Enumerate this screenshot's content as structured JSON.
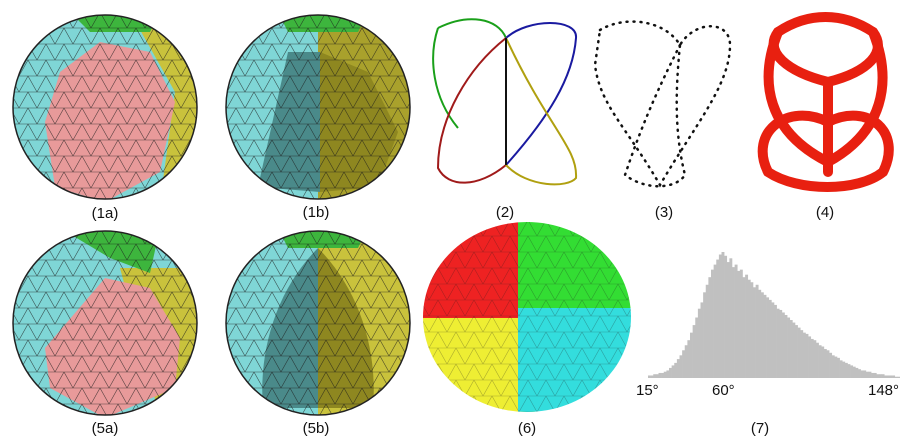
{
  "figure": {
    "captions": {
      "p1a": "(1a)",
      "p1b": "(1b)",
      "p2": "(2)",
      "p3": "(3)",
      "p4": "(4)",
      "p5a": "(5a)",
      "p5b": "(5b)",
      "p6": "(6)",
      "p7": "(7)"
    },
    "colors": {
      "cyan_region": "#7fd6d6",
      "pink_region": "#e89a9a",
      "yellow_region": "#c9c23c",
      "green_region": "#3db53d",
      "mesh_lines": "#1a1a1a",
      "curve_green": "#1aa01a",
      "curve_blue": "#1a1aa0",
      "curve_red": "#a01a1a",
      "curve_yellow": "#b0a010",
      "tube_red": "#e82010",
      "disc_red": "#ee2222",
      "disc_green": "#33dd33",
      "disc_yellow": "#eeee33",
      "disc_cyan": "#33dddd",
      "histogram": "#c0c0c0"
    }
  },
  "chart_data": {
    "type": "bar",
    "title": "",
    "xlabel": "",
    "ylabel": "",
    "tick_labels": [
      "15°",
      "60°",
      "148°"
    ],
    "x_range": [
      15,
      148
    ],
    "tick_values": [
      15,
      60,
      148
    ],
    "values": [
      2,
      2,
      3,
      3,
      4,
      4,
      5,
      6,
      8,
      10,
      12,
      15,
      18,
      22,
      26,
      30,
      36,
      42,
      48,
      55,
      60,
      68,
      74,
      80,
      86,
      90,
      94,
      98,
      100,
      97,
      92,
      95,
      88,
      90,
      85,
      86,
      80,
      82,
      78,
      76,
      72,
      74,
      70,
      68,
      66,
      64,
      62,
      60,
      58,
      55,
      54,
      52,
      50,
      48,
      46,
      44,
      42,
      40,
      38,
      36,
      35,
      33,
      31,
      30,
      28,
      26,
      25,
      23,
      22,
      20,
      18,
      17,
      16,
      14,
      13,
      12,
      11,
      10,
      9,
      8,
      7,
      6,
      6,
      5,
      5,
      4,
      4,
      3,
      3,
      3,
      2,
      2,
      2,
      2,
      1,
      1
    ]
  }
}
